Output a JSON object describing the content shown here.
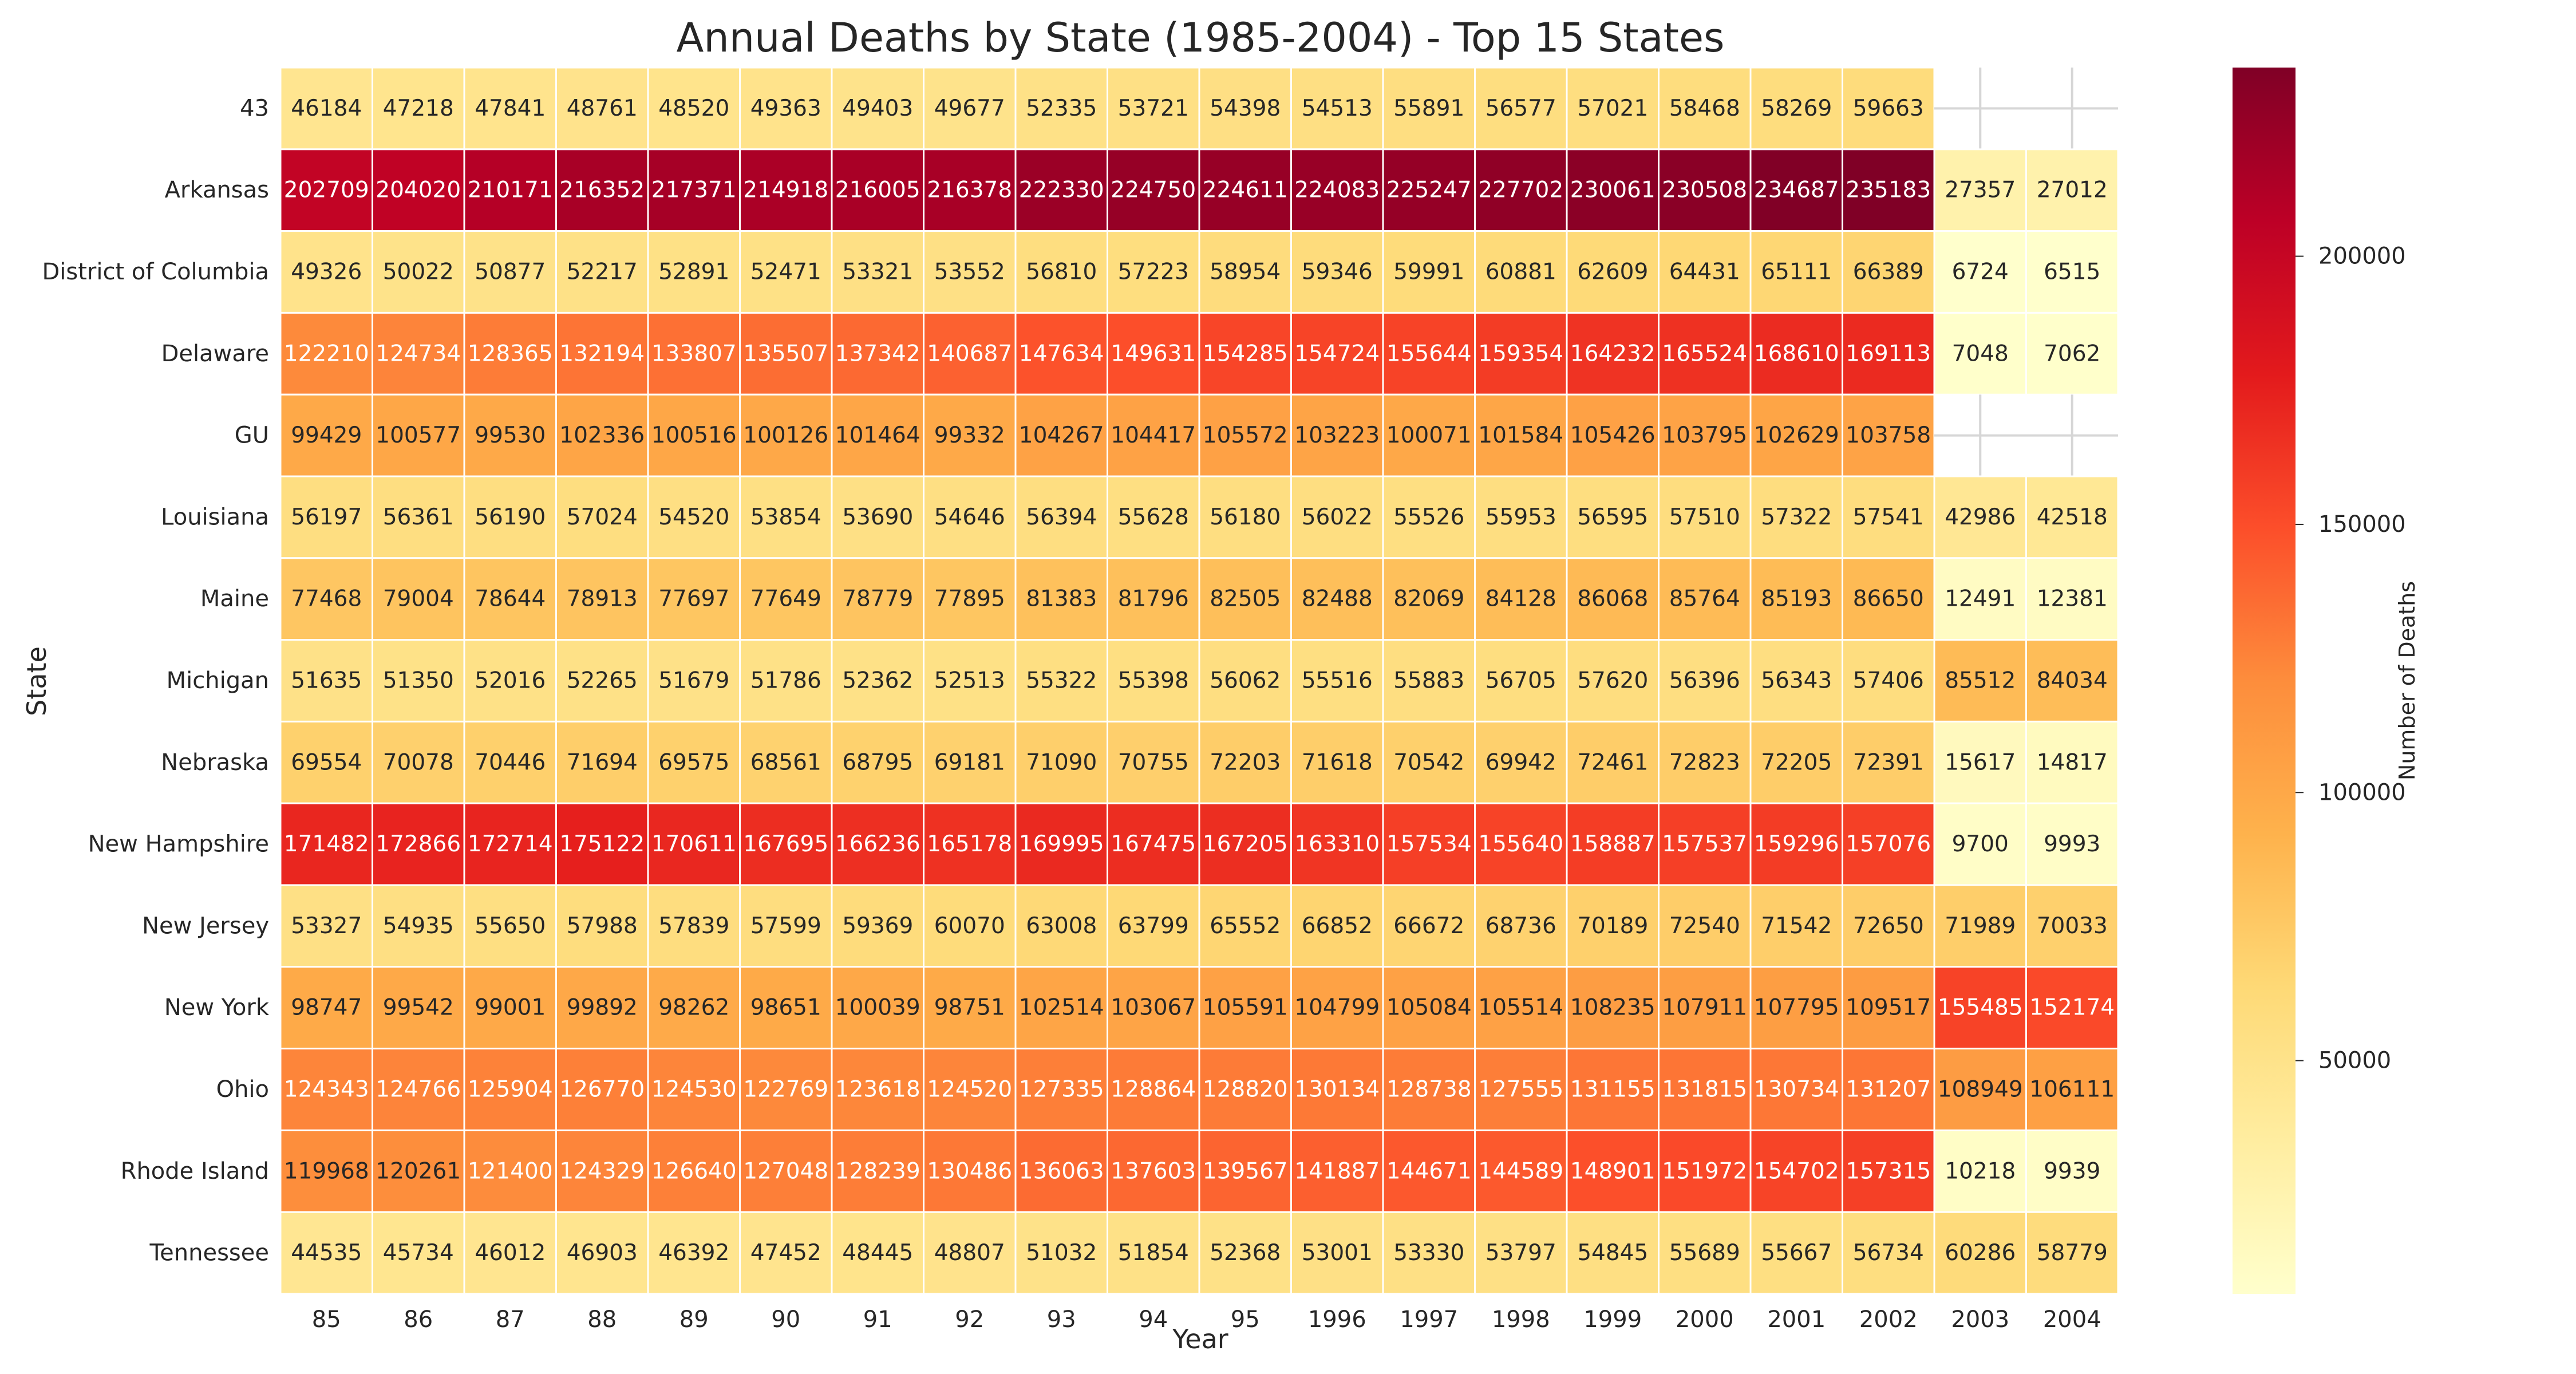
{
  "chart_data": {
    "type": "heatmap",
    "title": "Annual Deaths by State (1985-2004) - Top 15 States",
    "xlabel": "Year",
    "ylabel": "State",
    "x": [
      "85",
      "86",
      "87",
      "88",
      "89",
      "90",
      "91",
      "92",
      "93",
      "94",
      "95",
      "1996",
      "1997",
      "1998",
      "1999",
      "2000",
      "2001",
      "2002",
      "2003",
      "2004"
    ],
    "y": [
      "43",
      "Arkansas",
      "District of Columbia",
      "Delaware",
      "GU",
      "Louisiana",
      "Maine",
      "Michigan",
      "Nebraska",
      "New Hampshire",
      "New Jersey",
      "New York",
      "Ohio",
      "Rhode Island",
      "Tennessee"
    ],
    "values": [
      [
        46184,
        47218,
        47841,
        48761,
        48520,
        49363,
        49403,
        49677,
        52335,
        53721,
        54398,
        54513,
        55891,
        56577,
        57021,
        58468,
        58269,
        59663,
        null,
        null
      ],
      [
        202709,
        204020,
        210171,
        216352,
        217371,
        214918,
        216005,
        216378,
        222330,
        224750,
        224611,
        224083,
        225247,
        227702,
        230061,
        230508,
        234687,
        235183,
        27357,
        27012
      ],
      [
        49326,
        50022,
        50877,
        52217,
        52891,
        52471,
        53321,
        53552,
        56810,
        57223,
        58954,
        59346,
        59991,
        60881,
        62609,
        64431,
        65111,
        66389,
        6724,
        6515
      ],
      [
        122210,
        124734,
        128365,
        132194,
        133807,
        135507,
        137342,
        140687,
        147634,
        149631,
        154285,
        154724,
        155644,
        159354,
        164232,
        165524,
        168610,
        169113,
        7048,
        7062
      ],
      [
        99429,
        100577,
        99530,
        102336,
        100516,
        100126,
        101464,
        99332,
        104267,
        104417,
        105572,
        103223,
        100071,
        101584,
        105426,
        103795,
        102629,
        103758,
        null,
        null
      ],
      [
        56197,
        56361,
        56190,
        57024,
        54520,
        53854,
        53690,
        54646,
        56394,
        55628,
        56180,
        56022,
        55526,
        55953,
        56595,
        57510,
        57322,
        57541,
        42986,
        42518
      ],
      [
        77468,
        79004,
        78644,
        78913,
        77697,
        77649,
        78779,
        77895,
        81383,
        81796,
        82505,
        82488,
        82069,
        84128,
        86068,
        85764,
        85193,
        86650,
        12491,
        12381
      ],
      [
        51635,
        51350,
        52016,
        52265,
        51679,
        51786,
        52362,
        52513,
        55322,
        55398,
        56062,
        55516,
        55883,
        56705,
        57620,
        56396,
        56343,
        57406,
        85512,
        84034
      ],
      [
        69554,
        70078,
        70446,
        71694,
        69575,
        68561,
        68795,
        69181,
        71090,
        70755,
        72203,
        71618,
        70542,
        69942,
        72461,
        72823,
        72205,
        72391,
        15617,
        14817
      ],
      [
        171482,
        172866,
        172714,
        175122,
        170611,
        167695,
        166236,
        165178,
        169995,
        167475,
        167205,
        163310,
        157534,
        155640,
        158887,
        157537,
        159296,
        157076,
        9700,
        9993
      ],
      [
        53327,
        54935,
        55650,
        57988,
        57839,
        57599,
        59369,
        60070,
        63008,
        63799,
        65552,
        66852,
        66672,
        68736,
        70189,
        72540,
        71542,
        72650,
        71989,
        70033
      ],
      [
        98747,
        99542,
        99001,
        99892,
        98262,
        98651,
        100039,
        98751,
        102514,
        103067,
        105591,
        104799,
        105084,
        105514,
        108235,
        107911,
        107795,
        109517,
        155485,
        152174
      ],
      [
        124343,
        124766,
        125904,
        126770,
        124530,
        122769,
        123618,
        124520,
        127335,
        128864,
        128820,
        130134,
        128738,
        127555,
        131155,
        131815,
        130734,
        131207,
        108949,
        106111
      ],
      [
        119968,
        120261,
        121400,
        124329,
        126640,
        127048,
        128239,
        130486,
        136063,
        137603,
        139567,
        141887,
        144671,
        144589,
        148901,
        151972,
        154702,
        157315,
        10218,
        9939
      ],
      [
        44535,
        45734,
        46012,
        46903,
        46392,
        47452,
        48445,
        48807,
        51032,
        51854,
        52368,
        53001,
        53330,
        53797,
        54845,
        55689,
        55667,
        56734,
        60286,
        58779
      ]
    ],
    "colormap": "YlOrRd",
    "value_range": [
      6515,
      235183
    ],
    "colorbar": {
      "label": "Number of Deaths",
      "ticks": [
        50000,
        100000,
        150000,
        200000
      ],
      "tick_labels": [
        "50000",
        "100000",
        "150000",
        "200000"
      ]
    },
    "missing_cells_shown_as": "blank with grid lines",
    "grid": true
  }
}
